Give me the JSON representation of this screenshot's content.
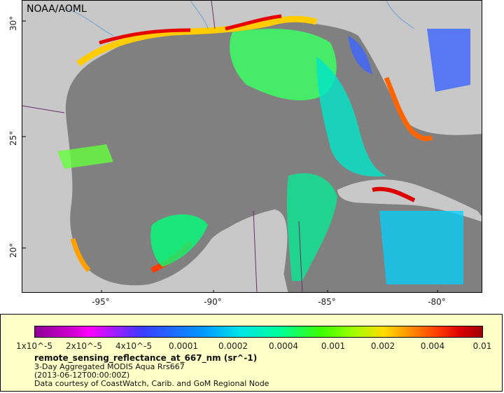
{
  "map": {
    "credit": "NOAA/AOML",
    "lat_ticks": [
      "30°",
      "25°",
      "20°"
    ],
    "lon_ticks": [
      "-95°",
      "-90°",
      "-85°",
      "-80°"
    ],
    "land_color": "#c8c8c8",
    "ocean_nodata_color": "#808080"
  },
  "legend": {
    "bar_labels": [
      "1x10^-5",
      "2x10^-5",
      "4x10^-5",
      "0.0001",
      "0.0002",
      "0.0004",
      "0.001",
      "0.002",
      "0.004",
      "0.01"
    ],
    "title": "remote_sensing_reflectance_at_667_nm (sr^-1)",
    "subtitle": "3-Day Aggregated MODIS Aqua Rrs667",
    "date": "(2013-06-12T00:00:00Z)",
    "source": "Data courtesy of CoastWatch, Carib. and GoM Regional Node",
    "background_color": "#ffffc8"
  }
}
